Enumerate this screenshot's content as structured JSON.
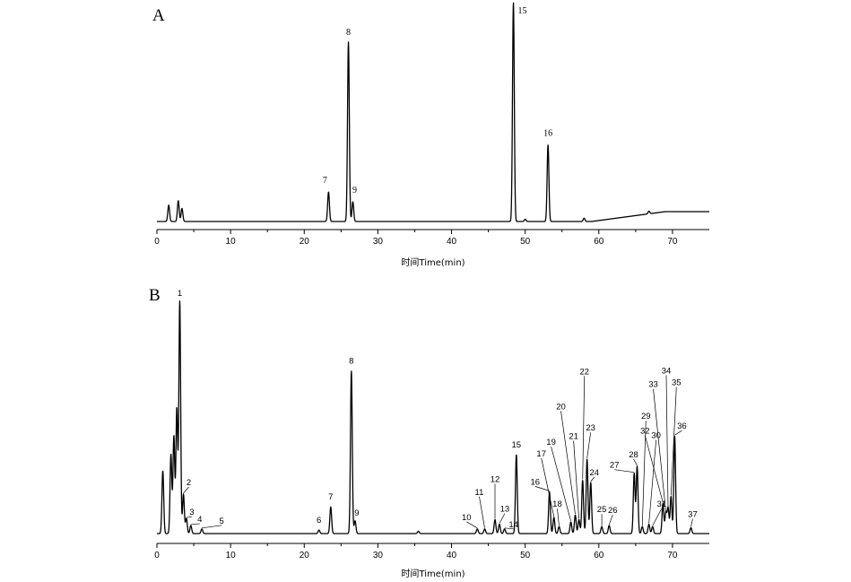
{
  "chart_data": [
    {
      "type": "line",
      "panel": "A",
      "xlabel": "时间Time(min)",
      "xlim": [
        0,
        75
      ],
      "x_ticks": [
        0,
        10,
        20,
        30,
        40,
        50,
        60,
        70
      ],
      "peaks": [
        {
          "label": "",
          "t": 1.6,
          "h": 0.075
        },
        {
          "label": "",
          "t": 2.9,
          "h": 0.095
        },
        {
          "label": "",
          "t": 3.4,
          "h": 0.06
        },
        {
          "label": "7",
          "t": 23.3,
          "h": 0.135
        },
        {
          "label": "8",
          "t": 26.0,
          "h": 0.82
        },
        {
          "label": "9",
          "t": 26.6,
          "h": 0.09
        },
        {
          "label": "",
          "t": 50.0,
          "h": 0.01
        },
        {
          "label": "15",
          "t": 48.4,
          "h": 1.0
        },
        {
          "label": "16",
          "t": 53.1,
          "h": 0.35
        },
        {
          "label": "",
          "t": 58.0,
          "h": 0.015
        },
        {
          "label": "",
          "t": 66.8,
          "h": 0.012
        }
      ]
    },
    {
      "type": "line",
      "panel": "B",
      "xlabel": "时间Time(min)",
      "xlim": [
        0,
        75
      ],
      "x_ticks": [
        0,
        10,
        20,
        30,
        40,
        50,
        60,
        70
      ],
      "peaks": [
        {
          "label": "",
          "t": 0.8,
          "h": 0.27
        },
        {
          "label": "",
          "t": 1.9,
          "h": 0.34
        },
        {
          "label": "",
          "t": 2.3,
          "h": 0.42
        },
        {
          "label": "",
          "t": 2.7,
          "h": 0.54
        },
        {
          "label": "1",
          "t": 3.1,
          "h": 1.0
        },
        {
          "label": "2",
          "t": 3.6,
          "h": 0.17
        },
        {
          "label": "3",
          "t": 4.0,
          "h": 0.065
        },
        {
          "label": "4",
          "t": 4.6,
          "h": 0.035
        },
        {
          "label": "5",
          "t": 6.1,
          "h": 0.02
        },
        {
          "label": "6",
          "t": 22.0,
          "h": 0.015
        },
        {
          "label": "7",
          "t": 23.6,
          "h": 0.115
        },
        {
          "label": "8",
          "t": 26.4,
          "h": 0.7
        },
        {
          "label": "9",
          "t": 26.9,
          "h": 0.055
        },
        {
          "label": "",
          "t": 35.5,
          "h": 0.01
        },
        {
          "label": "10",
          "t": 43.5,
          "h": 0.02
        },
        {
          "label": "11",
          "t": 44.5,
          "h": 0.02
        },
        {
          "label": "12",
          "t": 45.9,
          "h": 0.06
        },
        {
          "label": "13",
          "t": 46.5,
          "h": 0.04
        },
        {
          "label": "14",
          "t": 47.2,
          "h": 0.02
        },
        {
          "label": "15",
          "t": 48.8,
          "h": 0.34
        },
        {
          "label": "16",
          "t": 53.3,
          "h": 0.18
        },
        {
          "label": "17",
          "t": 53.9,
          "h": 0.07
        },
        {
          "label": "18",
          "t": 54.6,
          "h": 0.03
        },
        {
          "label": "19",
          "t": 56.2,
          "h": 0.05
        },
        {
          "label": "20",
          "t": 56.8,
          "h": 0.08
        },
        {
          "label": "21",
          "t": 57.3,
          "h": 0.06
        },
        {
          "label": "22",
          "t": 57.8,
          "h": 0.23
        },
        {
          "label": "23",
          "t": 58.4,
          "h": 0.32
        },
        {
          "label": "24",
          "t": 58.9,
          "h": 0.22
        },
        {
          "label": "25",
          "t": 60.4,
          "h": 0.03
        },
        {
          "label": "26",
          "t": 61.4,
          "h": 0.035
        },
        {
          "label": "27",
          "t": 64.8,
          "h": 0.26
        },
        {
          "label": "28",
          "t": 65.2,
          "h": 0.29
        },
        {
          "label": "29",
          "t": 65.9,
          "h": 0.03
        },
        {
          "label": "30",
          "t": 66.8,
          "h": 0.04
        },
        {
          "label": "31",
          "t": 67.3,
          "h": 0.03
        },
        {
          "label": "32",
          "t": 68.7,
          "h": 0.13
        },
        {
          "label": "33",
          "t": 69.1,
          "h": 0.09
        },
        {
          "label": "34",
          "t": 69.4,
          "h": 0.11
        },
        {
          "label": "35",
          "t": 69.8,
          "h": 0.16
        },
        {
          "label": "36",
          "t": 70.3,
          "h": 0.42
        },
        {
          "label": "37",
          "t": 72.5,
          "h": 0.025
        }
      ]
    }
  ]
}
